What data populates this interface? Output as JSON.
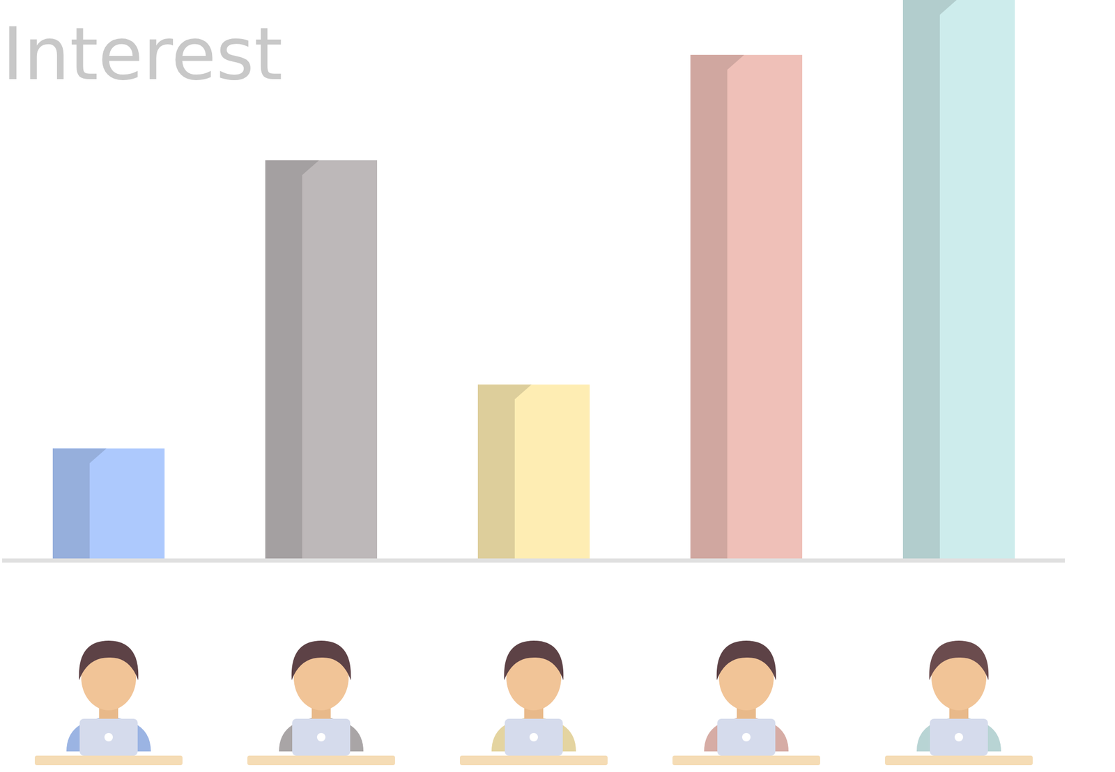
{
  "chart_data": {
    "type": "bar",
    "title": "Interest",
    "categories": [
      null,
      null,
      null,
      null,
      null
    ],
    "values": [
      20,
      71.4,
      31.4,
      90.2,
      100
    ],
    "colors": [
      "#adc9fd",
      "#bdb8b9",
      "#feedb3",
      "#efc0b8",
      "#cdecec"
    ],
    "ylim": [
      0,
      100
    ],
    "tick_labels": false
  }
}
